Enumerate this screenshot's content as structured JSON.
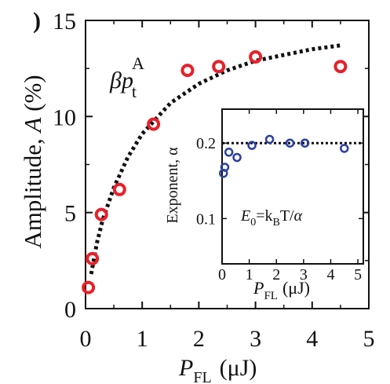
{
  "panel_mark": ")",
  "chart_data": [
    {
      "type": "scatter",
      "title": "",
      "xlabel": {
        "main": "P",
        "sub": "FL",
        "unit": "(μJ)"
      },
      "ylabel": {
        "main": "Amplitude, ",
        "var": "A",
        "unit": " (%)"
      },
      "xlim": [
        0,
        5
      ],
      "ylim": [
        0,
        15
      ],
      "xticks": [
        "0",
        "1",
        "2",
        "3",
        "4",
        "5"
      ],
      "yticks": [
        "0",
        "5",
        "10",
        "15"
      ],
      "grid": false,
      "colors": {
        "points": "#e8202a",
        "fit": "#111111"
      },
      "series": [
        {
          "kind": "markers",
          "x": [
            0.05,
            0.12,
            0.28,
            0.6,
            1.2,
            1.8,
            2.35,
            3.0,
            4.5
          ],
          "y": [
            1.1,
            2.6,
            4.9,
            6.2,
            9.6,
            12.4,
            12.6,
            13.1,
            12.6
          ]
        },
        {
          "kind": "fit-curve",
          "style": "dotted",
          "x": [
            0.1,
            0.2,
            0.3,
            0.5,
            0.75,
            1.0,
            1.5,
            2.0,
            2.5,
            3.0,
            3.5,
            4.0,
            4.5
          ],
          "y": [
            1.8,
            3.4,
            4.6,
            6.3,
            7.9,
            9.1,
            10.7,
            11.7,
            12.4,
            12.9,
            13.2,
            13.5,
            13.7
          ]
        }
      ],
      "annotation": {
        "base": "βp",
        "sub": "t",
        "sup": "A"
      }
    },
    {
      "type": "scatter",
      "title": "",
      "inset": true,
      "xlabel": {
        "main": "P",
        "sub": "FL",
        "unit": "(μJ)"
      },
      "ylabel": "Exponent, α",
      "xlim": [
        0,
        5.2
      ],
      "ylim": [
        0.04,
        0.245
      ],
      "xticks": [
        "0",
        "1",
        "2",
        "3",
        "4",
        "5"
      ],
      "yticks": [
        "0.1",
        "0.2"
      ],
      "grid": false,
      "colors": {
        "points": "#2b3fa0",
        "reference": "#111111"
      },
      "series": [
        {
          "kind": "markers",
          "x": [
            0.05,
            0.1,
            0.25,
            0.55,
            1.1,
            1.75,
            2.5,
            3.05,
            4.5
          ],
          "y": [
            0.16,
            0.168,
            0.188,
            0.181,
            0.197,
            0.205,
            0.2,
            0.2,
            0.193
          ]
        },
        {
          "kind": "reference-line",
          "style": "dotted",
          "y": 0.2
        }
      ],
      "annotation": {
        "e": "E",
        "e_sub": "0",
        "eq": "=k",
        "k_sub": "B",
        "rest": "T/",
        "alpha": "α"
      }
    }
  ]
}
